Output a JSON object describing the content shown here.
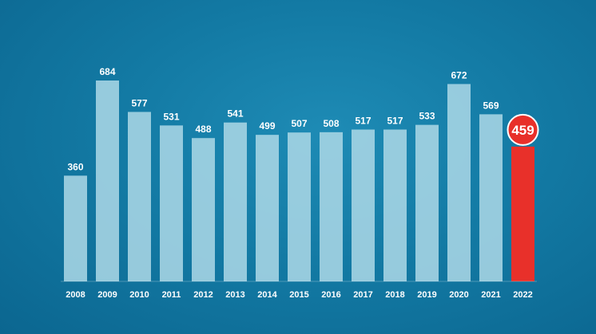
{
  "chart_data": {
    "type": "bar",
    "categories": [
      "2008",
      "2009",
      "2010",
      "2011",
      "2012",
      "2013",
      "2014",
      "2015",
      "2016",
      "2017",
      "2018",
      "2019",
      "2020",
      "2021",
      "2022"
    ],
    "values": [
      360,
      684,
      577,
      531,
      488,
      541,
      499,
      507,
      508,
      517,
      517,
      533,
      672,
      569,
      459
    ],
    "value_labels": [
      "360",
      "684",
      "577",
      "531",
      "488",
      "541",
      "499",
      "507",
      "508",
      "517",
      "517",
      "533",
      "672",
      "569",
      "459"
    ],
    "title": "",
    "xlabel": "",
    "ylabel": "",
    "ylim": [
      0,
      684
    ],
    "grid": false,
    "highlight_index": 14,
    "colors": {
      "background": "#137aa4",
      "bar": "#a9d6e5",
      "highlight": "#e8302a",
      "text": "#ffffff"
    }
  }
}
